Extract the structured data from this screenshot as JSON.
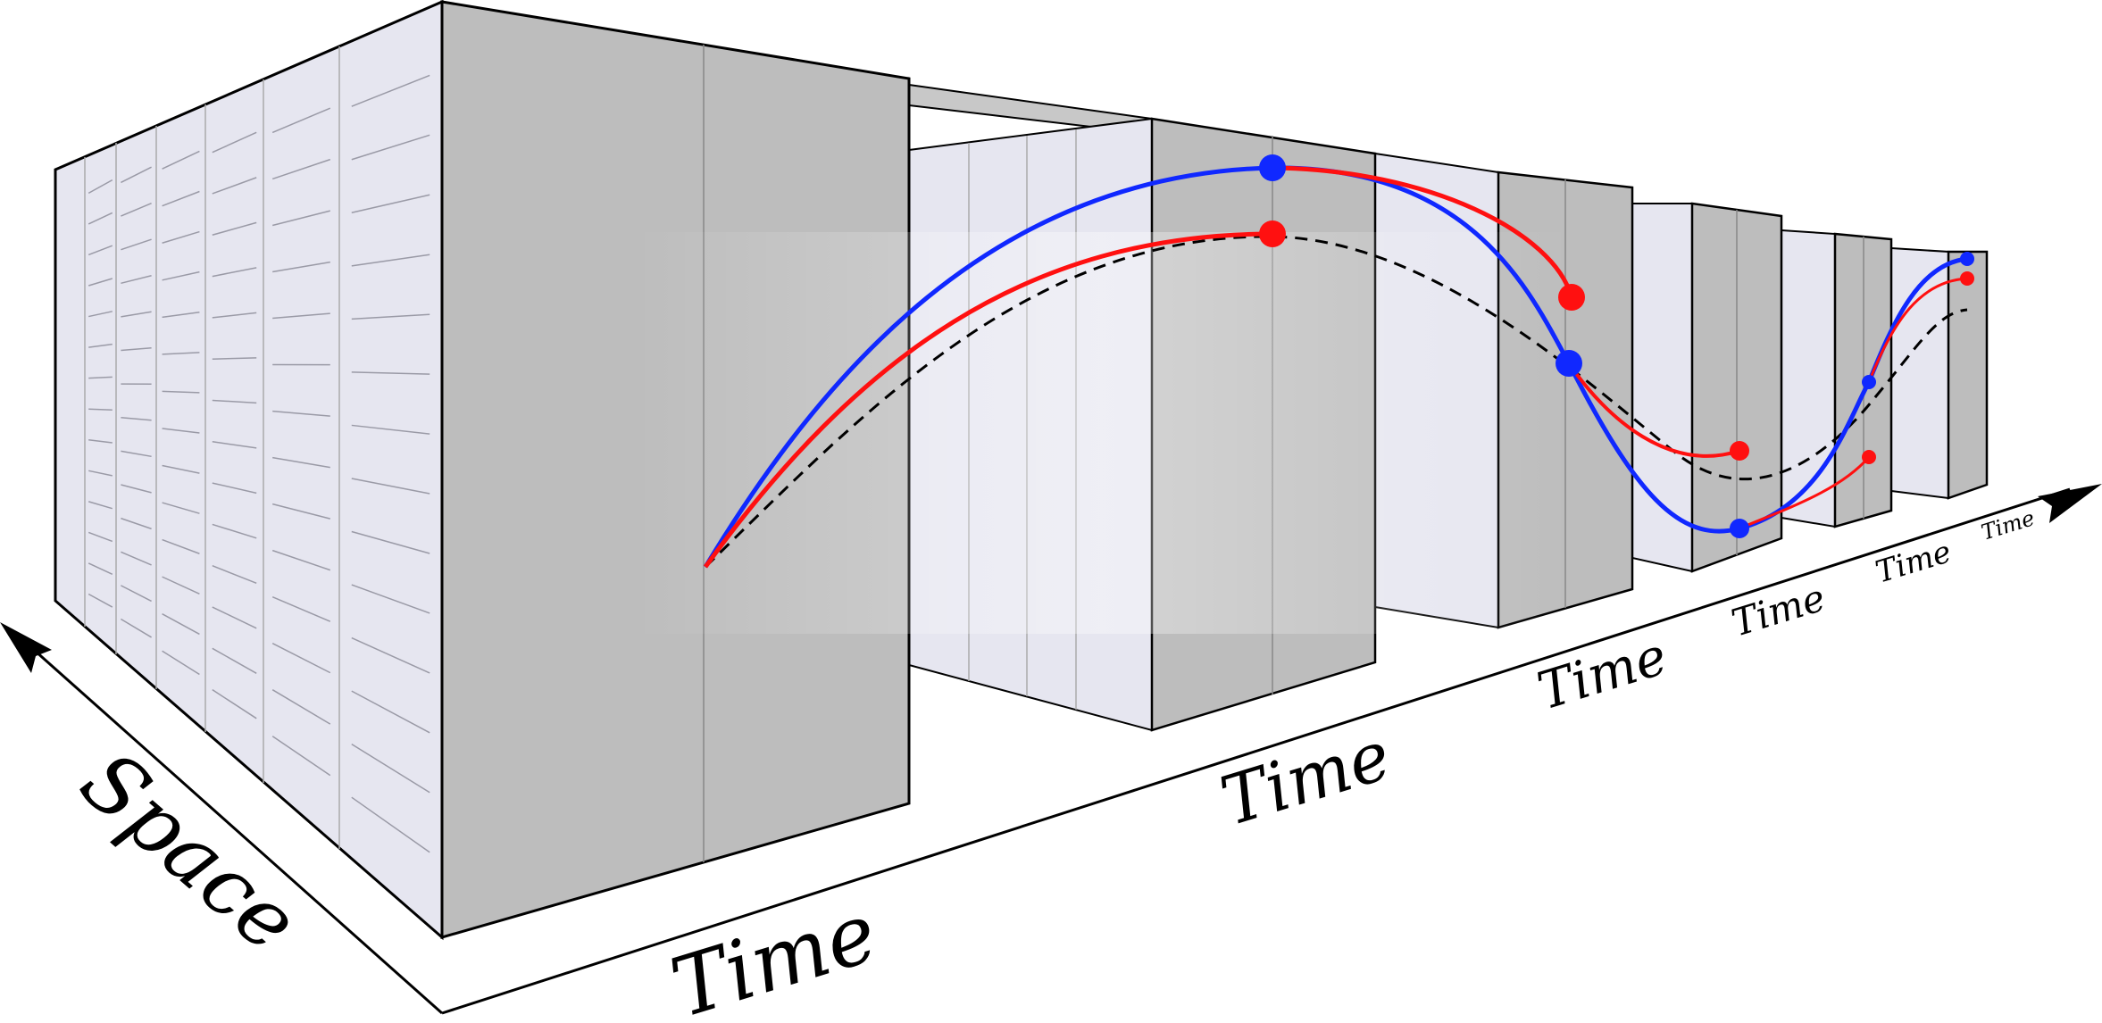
{
  "axes": {
    "space_label": "Space",
    "time_labels": [
      "Time",
      "Time",
      "Time",
      "Time",
      "Time",
      "Time"
    ]
  },
  "colors": {
    "block_side": "#e6e6f0",
    "block_front": "#bdbdbd",
    "block_stroke": "#000000",
    "trajectory_blue": "#1028ff",
    "trajectory_red": "#ff1010",
    "trajectory_reference": "#000000",
    "background": "#ffffff"
  },
  "diagram": {
    "type": "space-time slab diagram",
    "block_count": 6,
    "trajectories": [
      "blue",
      "red",
      "dashed-black"
    ]
  }
}
